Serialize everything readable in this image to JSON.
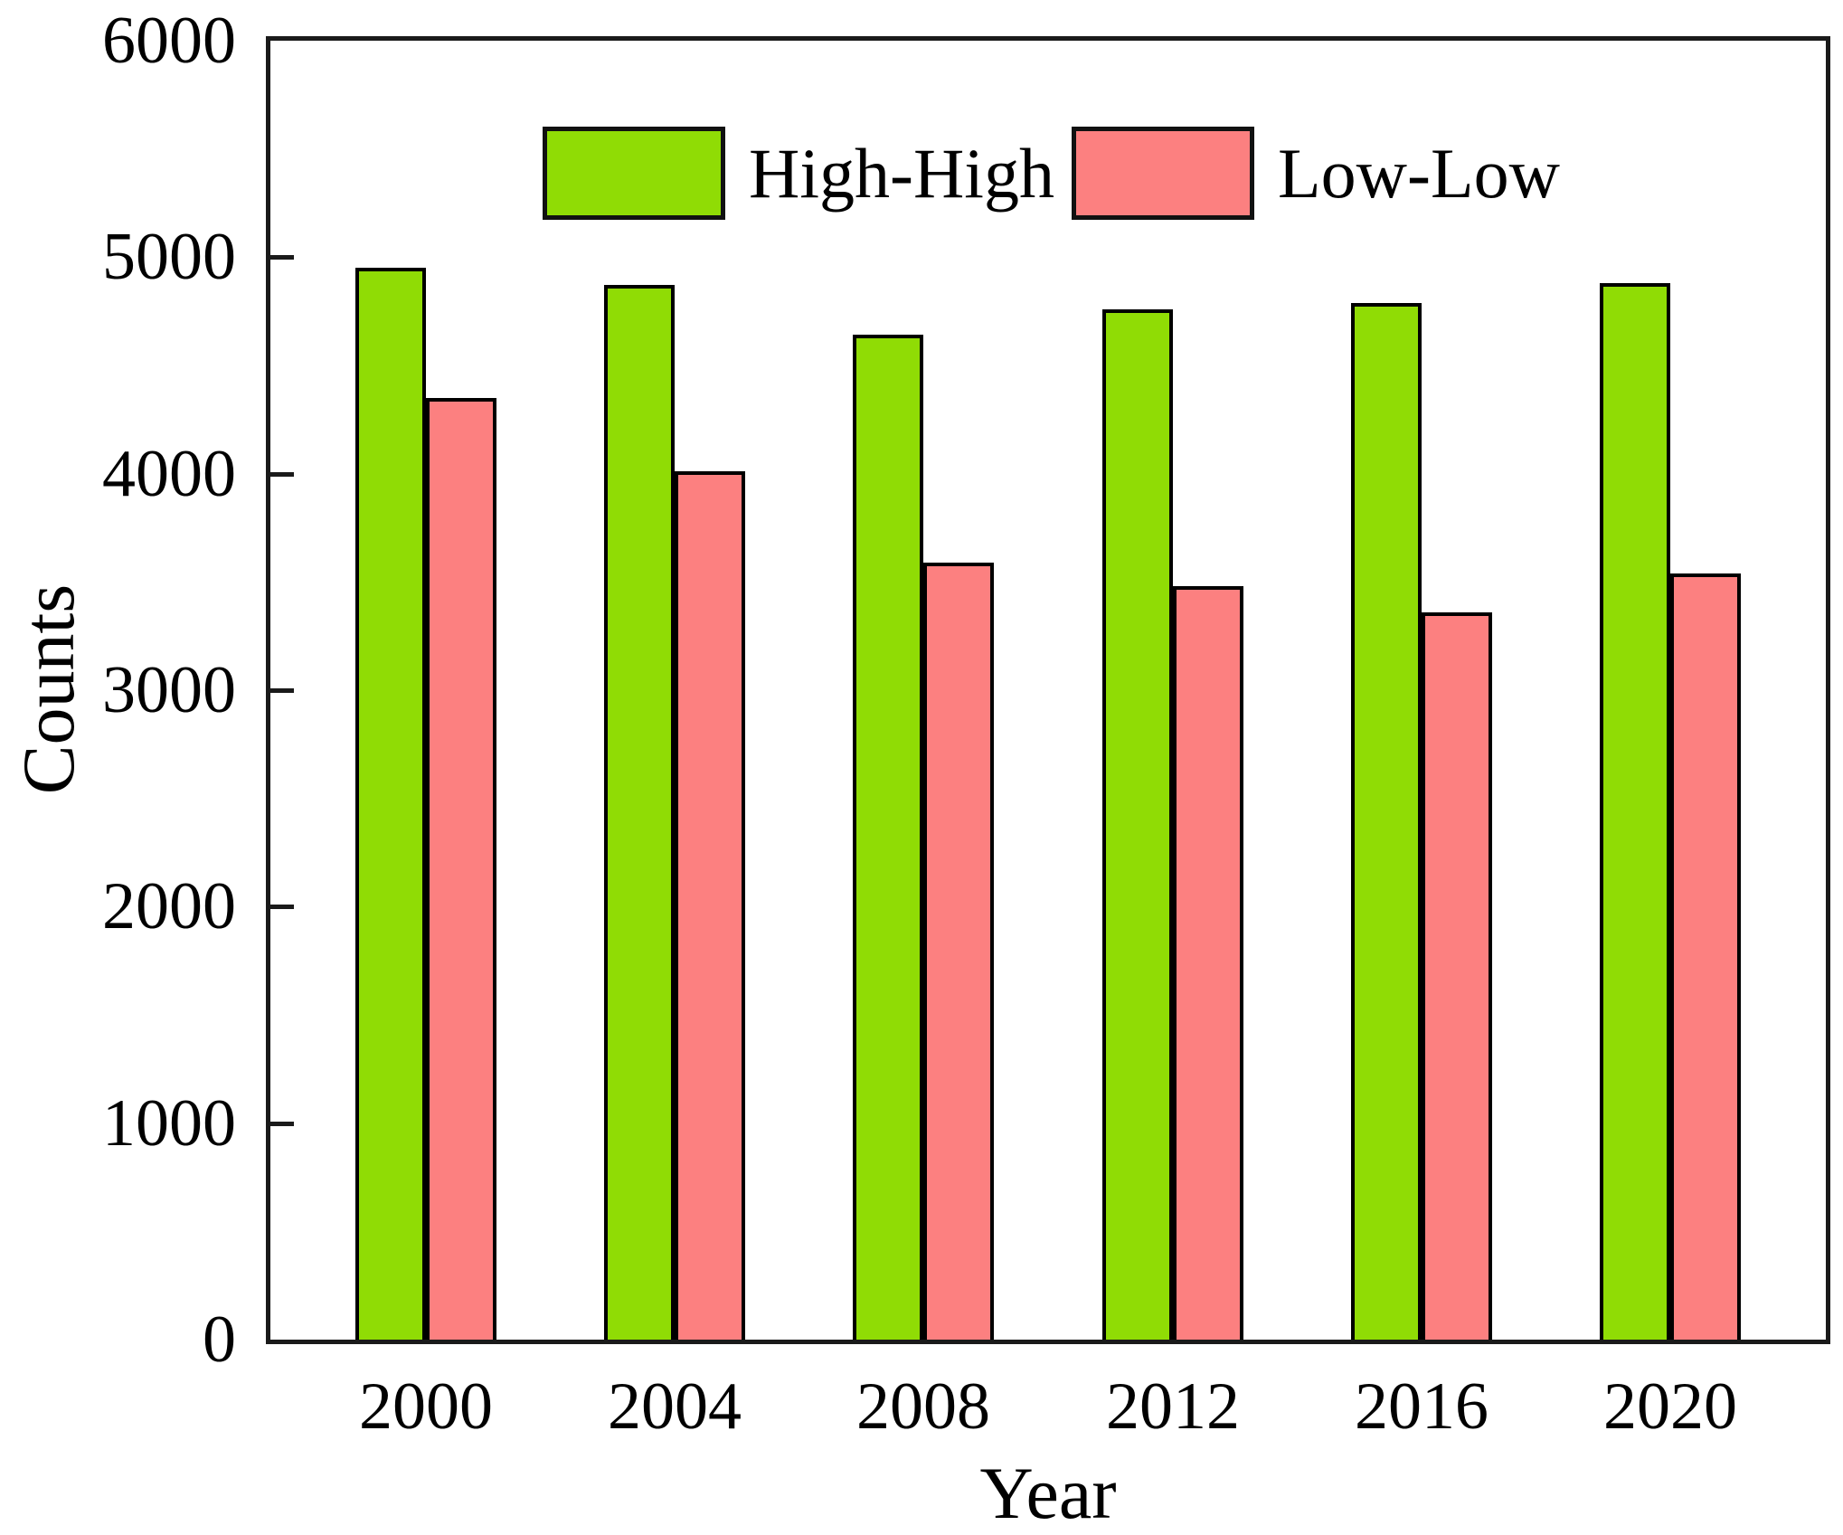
{
  "chart_data": {
    "type": "bar",
    "title": "",
    "categories": [
      "2000",
      "2004",
      "2008",
      "2012",
      "2016",
      "2020"
    ],
    "series": [
      {
        "name": "High-High",
        "color": "#90DC05",
        "values": [
          4950,
          4870,
          4640,
          4760,
          4790,
          4880
        ]
      },
      {
        "name": "Low-Low",
        "color": "#FC8080",
        "values": [
          4350,
          4010,
          3590,
          3480,
          3360,
          3540
        ]
      }
    ],
    "xlabel": "Year",
    "ylabel": "Counts",
    "ylim": [
      0,
      6000
    ],
    "yticks": [
      0,
      1000,
      2000,
      3000,
      4000,
      5000,
      6000
    ],
    "grid": false,
    "legend_position": "top-center",
    "bar_edge_color": "#000000",
    "axis_color": "#1a1a1a"
  }
}
